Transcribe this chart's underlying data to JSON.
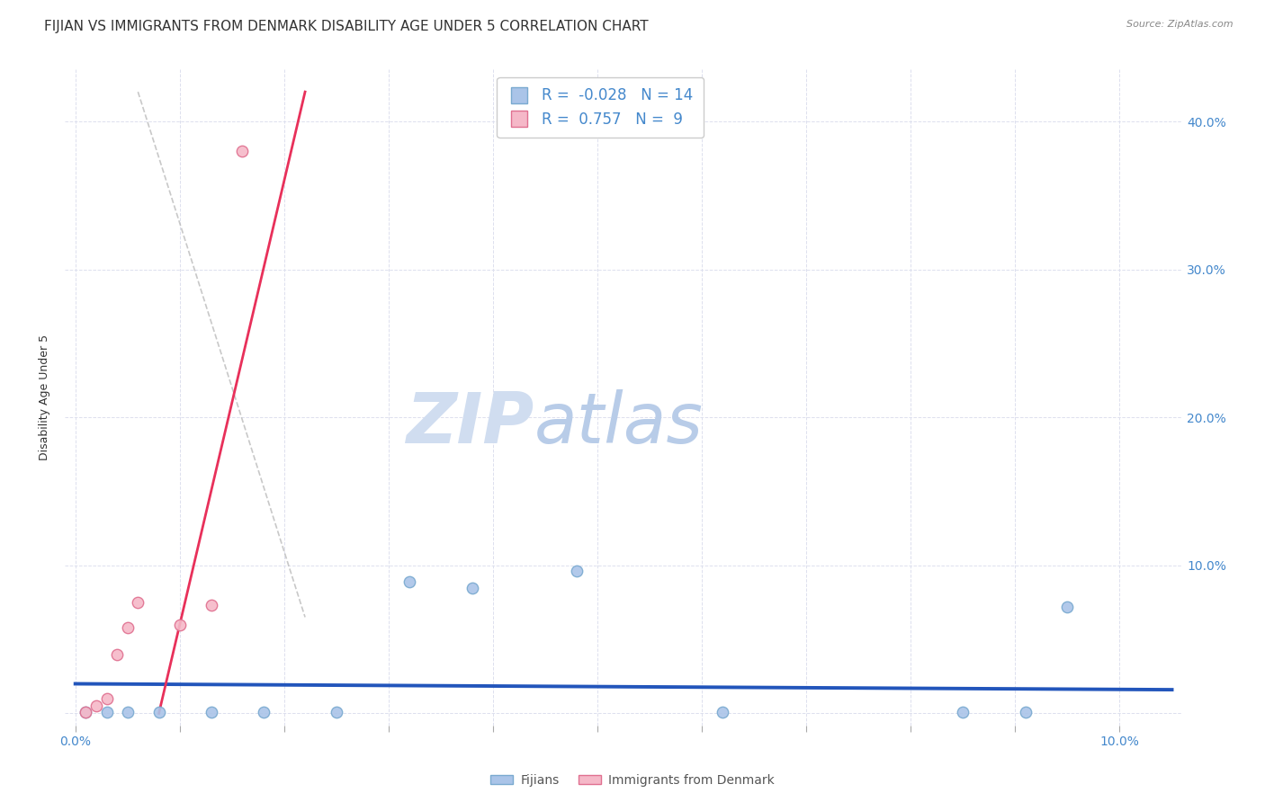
{
  "title": "FIJIAN VS IMMIGRANTS FROM DENMARK DISABILITY AGE UNDER 5 CORRELATION CHART",
  "source": "Source: ZipAtlas.com",
  "ylabel": "Disability Age Under 5",
  "fijians": {
    "x": [
      0.001,
      0.003,
      0.005,
      0.008,
      0.013,
      0.018,
      0.025,
      0.032,
      0.038,
      0.048,
      0.062,
      0.085,
      0.091,
      0.095
    ],
    "y": [
      0.001,
      0.001,
      0.001,
      0.001,
      0.001,
      0.001,
      0.001,
      0.089,
      0.085,
      0.096,
      0.001,
      0.001,
      0.001,
      0.072
    ],
    "color": "#aac4e8",
    "edge_color": "#7aaad0",
    "R": -0.028,
    "N": 14,
    "trend_color": "#2255bb",
    "trend_x": [
      0.0,
      0.105
    ],
    "trend_y": [
      0.02,
      0.016
    ]
  },
  "denmark": {
    "x": [
      0.001,
      0.002,
      0.003,
      0.004,
      0.005,
      0.006,
      0.01,
      0.013,
      0.016
    ],
    "y": [
      0.001,
      0.005,
      0.01,
      0.04,
      0.058,
      0.075,
      0.06,
      0.073,
      0.38
    ],
    "color": "#f5b8c8",
    "edge_color": "#e07090",
    "R": 0.757,
    "N": 9,
    "trend_color": "#e8305a",
    "trend_x": [
      0.008,
      0.022
    ],
    "trend_y": [
      0.0,
      0.42
    ]
  },
  "dashed_line": {
    "x": [
      0.006,
      0.022
    ],
    "y": [
      0.42,
      0.065
    ],
    "color": "#bbbbbb",
    "linestyle": "--",
    "linewidth": 1.2
  },
  "xlim": [
    -0.001,
    0.106
  ],
  "ylim": [
    -0.008,
    0.435
  ],
  "xticks": [
    0.0,
    0.01,
    0.02,
    0.03,
    0.04,
    0.05,
    0.06,
    0.07,
    0.08,
    0.09,
    0.1
  ],
  "yticks": [
    0.0,
    0.1,
    0.2,
    0.3,
    0.4
  ],
  "right_ytick_labels": [
    "",
    "10.0%",
    "20.0%",
    "30.0%",
    "40.0%"
  ],
  "xtick_labels": [
    "0.0%",
    "",
    "",
    "",
    "",
    "",
    "",
    "",
    "",
    "",
    "10.0%"
  ],
  "watermark_zip": "ZIP",
  "watermark_atlas": "atlas",
  "watermark_color_zip": "#d0ddf0",
  "watermark_color_atlas": "#b8cce8",
  "background_color": "#ffffff",
  "grid_color": "#dde0ee",
  "title_fontsize": 11,
  "axis_label_fontsize": 9,
  "tick_fontsize": 10,
  "scatter_size": 80
}
